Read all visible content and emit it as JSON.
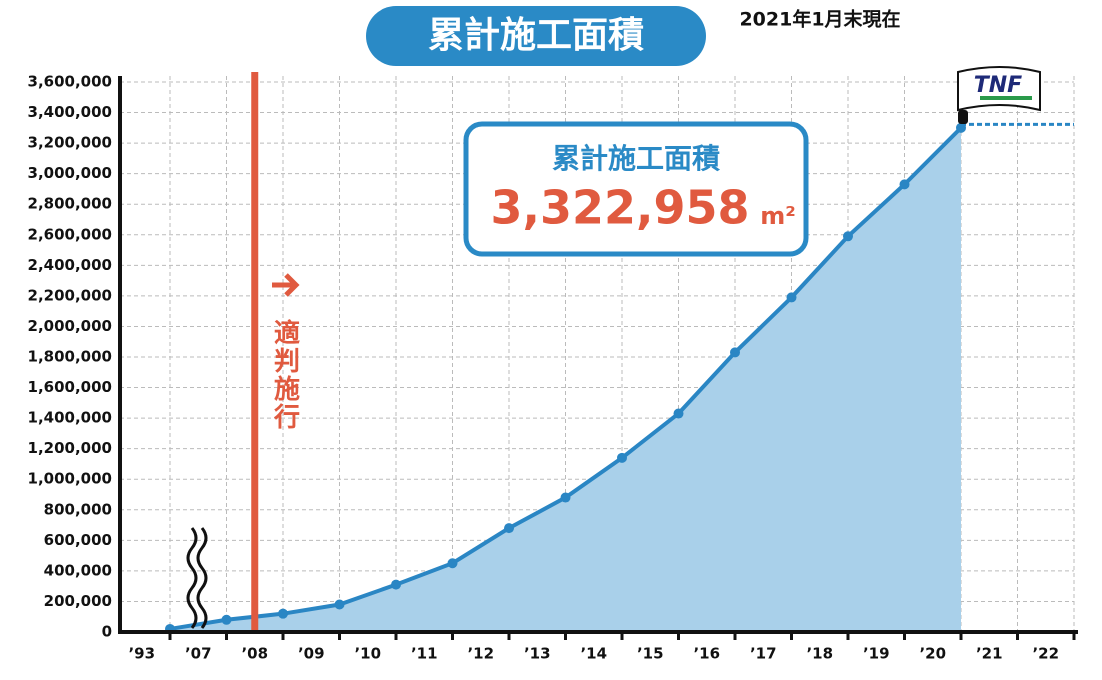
{
  "chart_data": {
    "type": "area",
    "title": "累計施工面積",
    "subtitle": "2021年1月末現在",
    "categories": [
      "’93",
      "’07",
      "’08",
      "’09",
      "’10",
      "’11",
      "’12",
      "’13",
      "’14",
      "’15",
      "’16",
      "’17",
      "’18",
      "’19",
      "’20",
      "’21",
      "’22"
    ],
    "values": [
      20000,
      80000,
      120000,
      180000,
      310000,
      450000,
      680000,
      880000,
      1140000,
      1430000,
      1830000,
      2190000,
      2590000,
      2930000,
      3300000,
      null,
      null
    ],
    "color": "#2a86c4",
    "fill": "#a9d0ea",
    "ylim": [
      0,
      3600000
    ],
    "yticks": [
      0,
      {
        "value": 200000,
        "label": "200,000"
      },
      {
        "value": 400000,
        "label": "400,000"
      },
      {
        "value": 600000,
        "label": "600,000"
      },
      {
        "value": 800000,
        "label": "800,000"
      },
      {
        "value": 1000000,
        "label": "1,000,000"
      },
      {
        "value": 1200000,
        "label": "1,200,000"
      },
      {
        "value": 1400000,
        "label": "1,400,000"
      },
      {
        "value": 1600000,
        "label": "1,600,000"
      },
      {
        "value": 1800000,
        "label": "1,800,000"
      },
      {
        "value": 2000000,
        "label": "2,000,000"
      },
      {
        "value": 2200000,
        "label": "2,200,000"
      },
      {
        "value": 2400000,
        "label": "2,400,000"
      },
      {
        "value": 2600000,
        "label": "2,600,000"
      },
      {
        "value": 2800000,
        "label": "2,800,000"
      },
      {
        "value": 3000000,
        "label": "3,000,000"
      },
      {
        "value": 3200000,
        "label": "3,200,000"
      },
      {
        "value": 3400000,
        "label": "3,400,000"
      },
      {
        "value": 3600000,
        "label": "3,600,000"
      }
    ],
    "grid": true,
    "event_label": "適判施行",
    "box_title": "累計施工面積",
    "total": {
      "value": 3322958,
      "label": "3,322,958"
    },
    "total_unit": "m²",
    "flag_text": "TNF"
  }
}
